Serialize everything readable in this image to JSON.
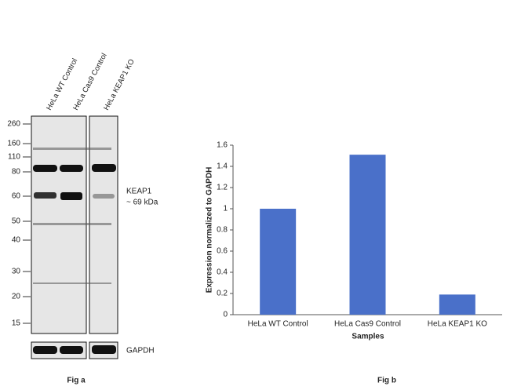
{
  "blot": {
    "lanes": [
      "HeLa WT Control",
      "HeLa Cas9 Control",
      "HeLa KEAP1 KO"
    ],
    "markers": [
      "260",
      "160",
      "110",
      "80",
      "60",
      "50",
      "40",
      "30",
      "20",
      "15"
    ],
    "target": "KEAP1",
    "target_size": "~ 69 kDa",
    "loading_control": "GAPDH",
    "caption": "Fig a"
  },
  "chart_data": {
    "type": "bar",
    "categories": [
      "HeLa WT Control",
      "HeLa Cas9 Control",
      "HeLa KEAP1 KO"
    ],
    "values": [
      1,
      1.51,
      0.19
    ],
    "color": "#4a70c9",
    "ylim": [
      0,
      1.6
    ],
    "yticks": [
      0,
      0.2,
      0.4,
      0.6,
      0.8,
      1,
      1.2,
      1.4,
      1.6
    ],
    "xlabel": "Samples",
    "ylabel": "Expression normalized to GAPDH",
    "caption": "Fig b",
    "grid": false
  }
}
